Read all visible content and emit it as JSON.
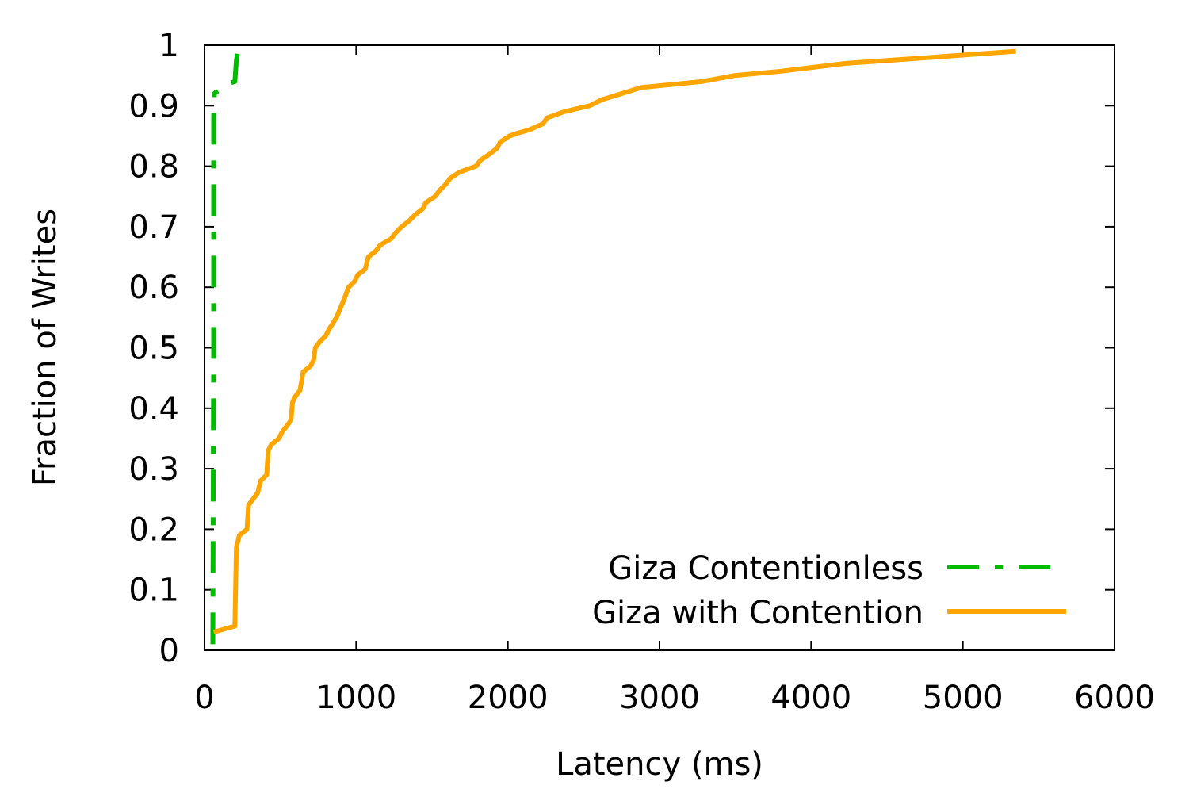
{
  "chart_data": {
    "type": "line",
    "title": "",
    "xlabel": "Latency (ms)",
    "ylabel": "Fraction of Writes",
    "xlim": [
      0,
      6000
    ],
    "ylim": [
      0,
      1
    ],
    "x_ticks": [
      0,
      1000,
      2000,
      3000,
      4000,
      5000,
      6000
    ],
    "y_ticks": [
      0,
      0.1,
      0.2,
      0.3,
      0.4,
      0.5,
      0.6,
      0.7,
      0.8,
      0.9,
      1
    ],
    "x_tick_labels": [
      "0",
      "1000",
      "2000",
      "3000",
      "4000",
      "5000",
      "6000"
    ],
    "y_tick_labels": [
      "0",
      "0.1",
      "0.2",
      "0.3",
      "0.4",
      "0.5",
      "0.6",
      "0.7",
      "0.8",
      "0.9",
      "1"
    ],
    "grid": false,
    "legend_position": "bottom-right",
    "series": [
      {
        "name": "Giza Contentionless",
        "color": "#00bb00",
        "dash": "dash-dot",
        "points": [
          [
            55,
            0.01
          ],
          [
            60,
            0.5
          ],
          [
            60,
            0.88
          ],
          [
            65,
            0.92
          ],
          [
            140,
            0.935
          ],
          [
            200,
            0.94
          ],
          [
            210,
            0.975
          ],
          [
            220,
            0.99
          ]
        ]
      },
      {
        "name": "Giza with Contention",
        "color": "#ffa500",
        "dash": "solid",
        "points": [
          [
            60,
            0.03
          ],
          [
            200,
            0.04
          ],
          [
            210,
            0.17
          ],
          [
            230,
            0.19
          ],
          [
            280,
            0.2
          ],
          [
            290,
            0.24
          ],
          [
            320,
            0.25
          ],
          [
            350,
            0.26
          ],
          [
            370,
            0.28
          ],
          [
            410,
            0.29
          ],
          [
            420,
            0.33
          ],
          [
            440,
            0.34
          ],
          [
            490,
            0.35
          ],
          [
            510,
            0.36
          ],
          [
            570,
            0.38
          ],
          [
            580,
            0.41
          ],
          [
            600,
            0.42
          ],
          [
            630,
            0.43
          ],
          [
            650,
            0.46
          ],
          [
            700,
            0.47
          ],
          [
            720,
            0.48
          ],
          [
            730,
            0.5
          ],
          [
            760,
            0.51
          ],
          [
            800,
            0.52
          ],
          [
            820,
            0.53
          ],
          [
            870,
            0.55
          ],
          [
            920,
            0.58
          ],
          [
            950,
            0.6
          ],
          [
            990,
            0.61
          ],
          [
            1010,
            0.62
          ],
          [
            1060,
            0.63
          ],
          [
            1080,
            0.65
          ],
          [
            1130,
            0.66
          ],
          [
            1160,
            0.67
          ],
          [
            1230,
            0.68
          ],
          [
            1260,
            0.69
          ],
          [
            1300,
            0.7
          ],
          [
            1350,
            0.71
          ],
          [
            1390,
            0.72
          ],
          [
            1440,
            0.73
          ],
          [
            1460,
            0.74
          ],
          [
            1520,
            0.75
          ],
          [
            1550,
            0.76
          ],
          [
            1590,
            0.77
          ],
          [
            1620,
            0.78
          ],
          [
            1680,
            0.79
          ],
          [
            1790,
            0.8
          ],
          [
            1820,
            0.81
          ],
          [
            1880,
            0.82
          ],
          [
            1930,
            0.83
          ],
          [
            1950,
            0.84
          ],
          [
            2010,
            0.85
          ],
          [
            2070,
            0.855
          ],
          [
            2140,
            0.86
          ],
          [
            2230,
            0.87
          ],
          [
            2260,
            0.88
          ],
          [
            2370,
            0.89
          ],
          [
            2540,
            0.9
          ],
          [
            2620,
            0.91
          ],
          [
            2750,
            0.92
          ],
          [
            2880,
            0.93
          ],
          [
            3280,
            0.94
          ],
          [
            3500,
            0.95
          ],
          [
            3800,
            0.957
          ],
          [
            4230,
            0.97
          ],
          [
            4800,
            0.98
          ],
          [
            5350,
            0.99
          ]
        ]
      }
    ]
  }
}
